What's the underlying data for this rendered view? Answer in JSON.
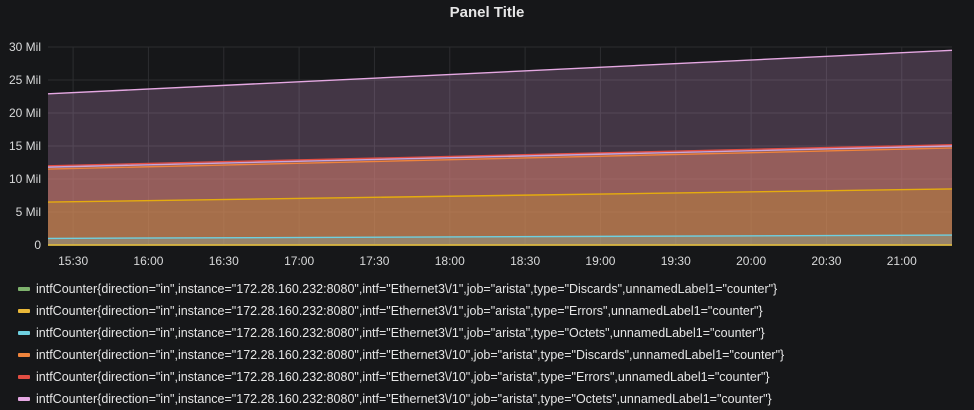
{
  "panel": {
    "title": "Panel Title"
  },
  "chart_data": {
    "type": "area",
    "title": "Panel Title",
    "xlabel": "",
    "ylabel": "",
    "ylim": [
      0,
      30000000
    ],
    "x_ticks": [
      "15:30",
      "16:00",
      "16:30",
      "17:00",
      "17:30",
      "18:00",
      "18:30",
      "19:00",
      "19:30",
      "20:00",
      "20:30",
      "21:00"
    ],
    "x_tick_minutes": [
      930,
      960,
      990,
      1020,
      1050,
      1080,
      1110,
      1140,
      1170,
      1200,
      1230,
      1260
    ],
    "x_range_minutes": [
      920,
      1280
    ],
    "y_ticks": [
      {
        "value": 0,
        "label": "0"
      },
      {
        "value": 5000000,
        "label": "5 Mil"
      },
      {
        "value": 10000000,
        "label": "10 Mil"
      },
      {
        "value": 15000000,
        "label": "15 Mil"
      },
      {
        "value": 20000000,
        "label": "20 Mil"
      },
      {
        "value": 25000000,
        "label": "25 Mil"
      },
      {
        "value": 30000000,
        "label": "30 Mil"
      }
    ],
    "grid": true,
    "legend_position": "bottom",
    "series": [
      {
        "name": "intfCounter{direction=\"in\",instance=\"172.28.160.232:8080\",intf=\"Ethernet3\\/1\",job=\"arista\",type=\"Discards\",unnamedLabel1=\"counter\"}",
        "color": "#7eb26d",
        "start": 0,
        "end": 0
      },
      {
        "name": "intfCounter{direction=\"in\",instance=\"172.28.160.232:8080\",intf=\"Ethernet3\\/1\",job=\"arista\",type=\"Errors\",unnamedLabel1=\"counter\"}",
        "color": "#eab839",
        "start": 0,
        "end": 0
      },
      {
        "name": "intfCounter{direction=\"in\",instance=\"172.28.160.232:8080\",intf=\"Ethernet3\\/1\",job=\"arista\",type=\"Octets\",unnamedLabel1=\"counter\"}",
        "color": "#6ed0e0",
        "start": 1000000,
        "end": 1500000
      },
      {
        "name": "intfCounter{direction=\"in\",instance=\"172.28.160.232:8080\",intf=\"Ethernet3\\/10\",job=\"arista\",type=\"Discards\",unnamedLabel1=\"counter\"}",
        "color": "#ef843c",
        "start": 11500000,
        "end": 14700000
      },
      {
        "name": "intfCounter{direction=\"in\",instance=\"172.28.160.232:8080\",intf=\"Ethernet3\\/10\",job=\"arista\",type=\"Errors\",unnamedLabel1=\"counter\"}",
        "color": "#e24d42",
        "start": 12000000,
        "end": 15200000
      },
      {
        "name": "",
        "color": "#e5a8e2",
        "start": 22900000,
        "end": 29500000
      },
      {
        "name": "",
        "color": "#e5ac0e",
        "start": 6500000,
        "end": 8500000
      },
      {
        "name": "",
        "color": "#c8a6d9",
        "start": 11800000,
        "end": 15000000
      }
    ],
    "visible_legend_count": 5,
    "partial_legend_text": "intfCounter{direction=\"in\",instance=\"172.28.160.232:8080\",intf=\"Ethernet3\\/10\",job=\"arista\",type=\"Octets\",unnamedLabel1=\"counter\"}"
  }
}
